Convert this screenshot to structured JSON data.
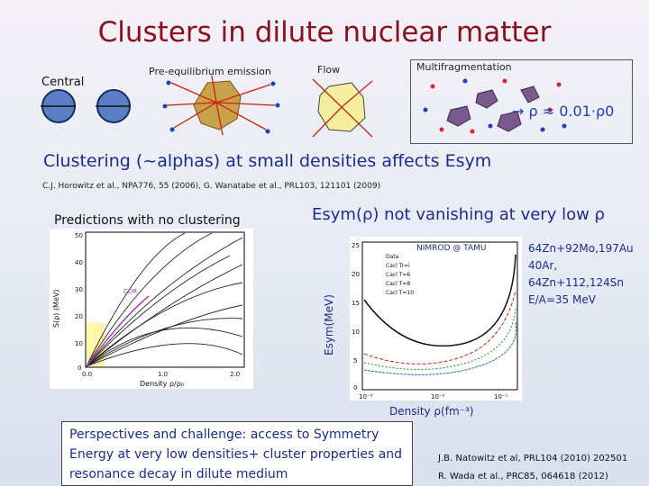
{
  "title": "Clusters in dilute nuclear matter",
  "labels": {
    "central": "Central",
    "preeq": "Pre-equilibrium emission",
    "flow": "Flow",
    "multifrag": "Multifragmentation"
  },
  "rho_note": "→ ρ ≈ 0.01·ρ0",
  "clustering": "Clustering (~alphas) at small densities affects Esym",
  "reference": "C.J. Horowitz et al., NPA776, 55 (2006), G. Wanatabe et al., PRL103, 121101 (2009)",
  "predictions": "Predictions with no clustering",
  "esym_title": "Esym(ρ) not vanishing at very low ρ",
  "left_plot": {
    "ylabel": "S(ρ) (MeV)",
    "xlabel": "Density ρ/ρ₀",
    "yticks": [
      "50",
      "40",
      "30",
      "20",
      "10",
      "0"
    ],
    "xticks": [
      "0.0",
      "1.0",
      "2.0"
    ],
    "marker": "CDR"
  },
  "right_plot": {
    "label": "NIMROD @ TAMU",
    "legend": [
      "Data",
      "Cacl Tr=i",
      "Cacl T=6",
      "Cacl T=8",
      "Cacl T=10"
    ],
    "yaxis": "Esym(MeV)",
    "xlabel": "Density ρ(fm⁻³)",
    "yticks": [
      "25",
      "20",
      "15",
      "10",
      "5",
      "0"
    ],
    "xticks": [
      "10⁻³",
      "10⁻²",
      "10⁻¹"
    ]
  },
  "reactions": [
    "64Zn+92Mo,197Au",
    "40Ar, 64Zn+112,124Sn",
    "E/A=35 MeV"
  ],
  "perspectives": "Perspectives and challenge: access to Symmetry Energy at very low densities+ cluster properties and resonance decay in dilute medium",
  "refs_bottom": [
    "J.B. Natowitz et al, PRL104 (2010) 202501",
    "R. Wada et al., PRC85, 064618 (2012)"
  ]
}
